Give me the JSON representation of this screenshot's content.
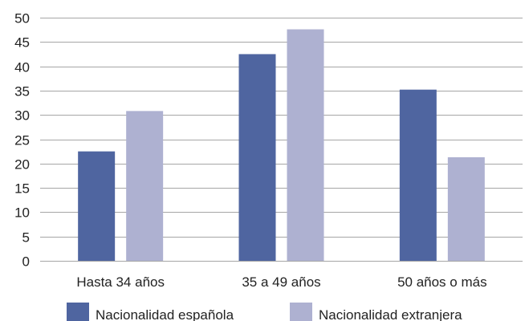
{
  "chart_data": {
    "type": "bar",
    "categories": [
      "Hasta 34 años",
      "35 a 49 años",
      "50 años o más"
    ],
    "series": [
      {
        "name": "Nacionalidad española",
        "values": [
          22.5,
          42.5,
          35.2
        ],
        "color": "#4f65a0"
      },
      {
        "name": "Nacionalidad extranjera",
        "values": [
          30.8,
          47.6,
          21.3
        ],
        "color": "#aeb1d1"
      }
    ],
    "ylim": [
      0,
      50
    ],
    "yticks": [
      "0",
      "5",
      "10",
      "15",
      "20",
      "25",
      "30",
      "35",
      "40",
      "45",
      "50"
    ],
    "grid": true,
    "legend_position": "bottom"
  }
}
